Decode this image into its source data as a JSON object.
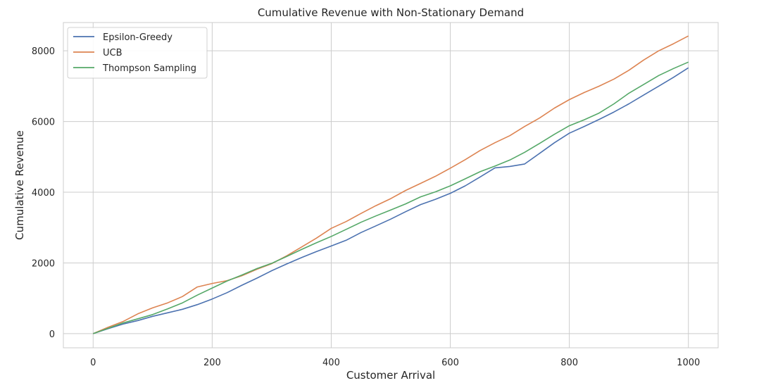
{
  "chart_data": {
    "type": "line",
    "title": "Cumulative Revenue with Non-Stationary Demand",
    "xlabel": "Customer Arrival",
    "ylabel": "Cumulative Revenue",
    "xlim": [
      -50,
      1050
    ],
    "ylim": [
      -400,
      8800
    ],
    "xticks": [
      0,
      200,
      400,
      600,
      800,
      1000
    ],
    "yticks": [
      0,
      2000,
      4000,
      6000,
      8000
    ],
    "grid": true,
    "legend_position": "top-left",
    "series": [
      {
        "name": "Epsilon-Greedy",
        "color": "#4c72b0",
        "x": [
          0,
          25,
          50,
          75,
          100,
          125,
          150,
          175,
          200,
          225,
          250,
          275,
          300,
          325,
          350,
          375,
          400,
          425,
          450,
          475,
          500,
          525,
          550,
          575,
          600,
          625,
          650,
          675,
          700,
          725,
          750,
          775,
          800,
          825,
          850,
          875,
          900,
          925,
          950,
          975,
          1000
        ],
        "values": [
          0,
          140,
          270,
          370,
          490,
          590,
          690,
          820,
          980,
          1160,
          1370,
          1570,
          1780,
          1970,
          2150,
          2320,
          2480,
          2640,
          2860,
          3050,
          3240,
          3450,
          3650,
          3800,
          3970,
          4180,
          4430,
          4690,
          4730,
          4800,
          5100,
          5400,
          5670,
          5860,
          6060,
          6270,
          6500,
          6750,
          7000,
          7250,
          7520
        ]
      },
      {
        "name": "UCB",
        "color": "#dd8452",
        "x": [
          0,
          25,
          50,
          75,
          100,
          125,
          150,
          175,
          200,
          225,
          250,
          275,
          300,
          325,
          350,
          375,
          400,
          425,
          450,
          475,
          500,
          525,
          550,
          575,
          600,
          625,
          650,
          675,
          700,
          725,
          750,
          775,
          800,
          825,
          850,
          875,
          900,
          925,
          950,
          975,
          1000
        ],
        "values": [
          0,
          180,
          340,
          560,
          730,
          870,
          1050,
          1320,
          1420,
          1500,
          1640,
          1820,
          1980,
          2200,
          2450,
          2700,
          2980,
          3170,
          3400,
          3620,
          3820,
          4050,
          4250,
          4450,
          4680,
          4920,
          5180,
          5400,
          5600,
          5860,
          6100,
          6380,
          6620,
          6820,
          7000,
          7200,
          7450,
          7740,
          8000,
          8200,
          8420
        ]
      },
      {
        "name": "Thompson Sampling",
        "color": "#55a868",
        "x": [
          0,
          25,
          50,
          75,
          100,
          125,
          150,
          175,
          200,
          225,
          250,
          275,
          300,
          325,
          350,
          375,
          400,
          425,
          450,
          475,
          500,
          525,
          550,
          575,
          600,
          625,
          650,
          675,
          700,
          725,
          750,
          775,
          800,
          825,
          850,
          875,
          900,
          925,
          950,
          975,
          1000
        ],
        "values": [
          0,
          150,
          300,
          420,
          540,
          700,
          870,
          1090,
          1290,
          1490,
          1660,
          1840,
          1990,
          2180,
          2380,
          2570,
          2750,
          2950,
          3150,
          3330,
          3500,
          3670,
          3870,
          4010,
          4180,
          4380,
          4580,
          4740,
          4910,
          5130,
          5380,
          5640,
          5880,
          6050,
          6240,
          6500,
          6800,
          7050,
          7300,
          7500,
          7680
        ]
      }
    ]
  }
}
